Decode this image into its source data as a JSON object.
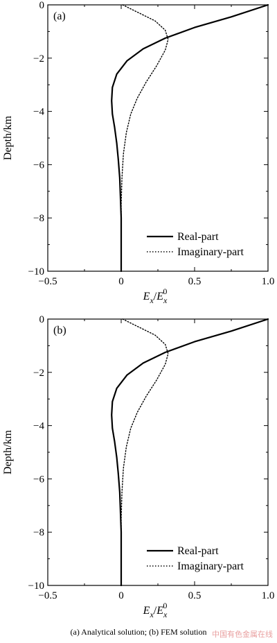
{
  "caption": "(a) Analytical solution; (b) FEM solution",
  "watermark": "中国有色金属在线",
  "chart_data": [
    {
      "type": "line",
      "panel_label": "(a)",
      "xlabel": "E_x/E_x^0",
      "ylabel": "Depth/km",
      "xlim": [
        -0.5,
        1.0
      ],
      "ylim": [
        -10,
        0
      ],
      "xticks": [
        -0.5,
        0,
        0.5,
        1.0
      ],
      "xtick_labels": [
        "−0.5",
        "0",
        "0.5",
        "1.0"
      ],
      "yticks": [
        0,
        -2,
        -4,
        -6,
        -8,
        -10
      ],
      "ytick_labels": [
        "0",
        "−2",
        "−4",
        "−6",
        "−8",
        "−10"
      ],
      "legend_position": "bottom-right",
      "series": [
        {
          "name": "Real-part",
          "style": "solid",
          "points": [
            [
              1.0,
              0
            ],
            [
              0.75,
              -0.45
            ],
            [
              0.5,
              -0.85
            ],
            [
              0.3,
              -1.25
            ],
            [
              0.15,
              -1.65
            ],
            [
              0.04,
              -2.1
            ],
            [
              -0.03,
              -2.6
            ],
            [
              -0.06,
              -3.1
            ],
            [
              -0.065,
              -3.6
            ],
            [
              -0.06,
              -4.1
            ],
            [
              -0.045,
              -4.6
            ],
            [
              -0.03,
              -5.2
            ],
            [
              -0.02,
              -5.8
            ],
            [
              -0.01,
              -6.5
            ],
            [
              -0.005,
              -7.2
            ],
            [
              0,
              -8
            ],
            [
              0,
              -9
            ],
            [
              0,
              -10
            ]
          ]
        },
        {
          "name": "Imaginary-part",
          "style": "dotted",
          "points": [
            [
              0.01,
              0
            ],
            [
              0.12,
              -0.3
            ],
            [
              0.23,
              -0.6
            ],
            [
              0.3,
              -0.95
            ],
            [
              0.32,
              -1.3
            ],
            [
              0.3,
              -1.7
            ],
            [
              0.24,
              -2.3
            ],
            [
              0.17,
              -2.9
            ],
            [
              0.11,
              -3.5
            ],
            [
              0.065,
              -4.1
            ],
            [
              0.035,
              -4.8
            ],
            [
              0.015,
              -5.6
            ],
            [
              0.005,
              -6.5
            ],
            [
              0,
              -7.5
            ],
            [
              0,
              -8.5
            ],
            [
              0,
              -10
            ]
          ]
        }
      ]
    },
    {
      "type": "line",
      "panel_label": "(b)",
      "xlabel": "E_x/E_x^0",
      "ylabel": "Depth/km",
      "xlim": [
        -0.5,
        1.0
      ],
      "ylim": [
        -10,
        0
      ],
      "xticks": [
        -0.5,
        0,
        0.5,
        1.0
      ],
      "xtick_labels": [
        "−0.5",
        "0",
        "0.5",
        "1.0"
      ],
      "yticks": [
        0,
        -2,
        -4,
        -6,
        -8,
        -10
      ],
      "ytick_labels": [
        "0",
        "−2",
        "−4",
        "−6",
        "−8",
        "−10"
      ],
      "legend_position": "bottom-right",
      "series": [
        {
          "name": "Real-part",
          "style": "solid",
          "points": [
            [
              1.0,
              0
            ],
            [
              0.75,
              -0.45
            ],
            [
              0.5,
              -0.85
            ],
            [
              0.3,
              -1.25
            ],
            [
              0.15,
              -1.65
            ],
            [
              0.04,
              -2.1
            ],
            [
              -0.03,
              -2.6
            ],
            [
              -0.06,
              -3.1
            ],
            [
              -0.065,
              -3.6
            ],
            [
              -0.06,
              -4.1
            ],
            [
              -0.045,
              -4.6
            ],
            [
              -0.03,
              -5.2
            ],
            [
              -0.02,
              -5.8
            ],
            [
              -0.01,
              -6.5
            ],
            [
              -0.005,
              -7.2
            ],
            [
              0,
              -8
            ],
            [
              0,
              -9
            ],
            [
              0,
              -10
            ]
          ]
        },
        {
          "name": "Imaginary-part",
          "style": "dotted",
          "points": [
            [
              0.01,
              0
            ],
            [
              0.12,
              -0.3
            ],
            [
              0.23,
              -0.6
            ],
            [
              0.3,
              -0.95
            ],
            [
              0.32,
              -1.3
            ],
            [
              0.3,
              -1.7
            ],
            [
              0.24,
              -2.3
            ],
            [
              0.17,
              -2.9
            ],
            [
              0.11,
              -3.5
            ],
            [
              0.065,
              -4.1
            ],
            [
              0.035,
              -4.8
            ],
            [
              0.015,
              -5.6
            ],
            [
              0.005,
              -6.5
            ],
            [
              0,
              -7.5
            ],
            [
              0,
              -8.5
            ],
            [
              0,
              -10
            ]
          ]
        }
      ]
    }
  ]
}
